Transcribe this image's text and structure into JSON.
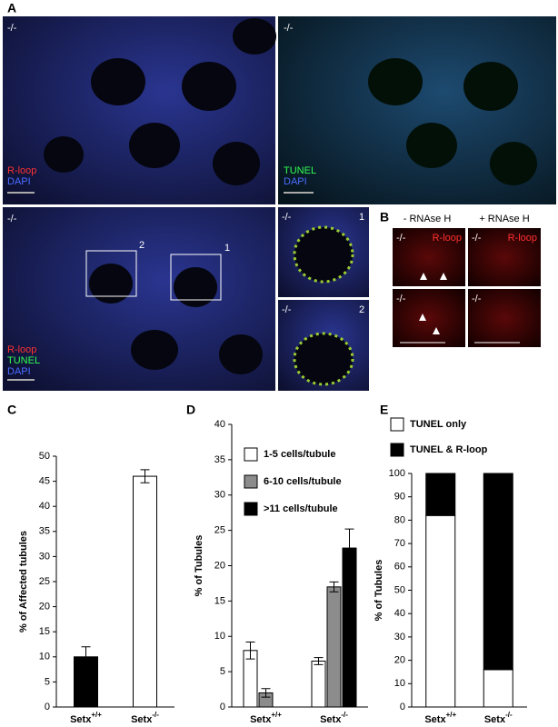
{
  "panel_a": {
    "label": "A",
    "top_left": {
      "genotype": "-/-",
      "stains": [
        "R-loop",
        "DAPI"
      ]
    },
    "top_right": {
      "genotype": "-/-",
      "stains": [
        "TUNEL",
        "DAPI"
      ]
    },
    "merge": {
      "genotype": "-/-",
      "stains": [
        "R-loop",
        "TUNEL",
        "DAPI"
      ],
      "boxes": [
        "2",
        "1"
      ]
    },
    "insets": [
      {
        "genotype": "-/-",
        "number": "1"
      },
      {
        "genotype": "-/-",
        "number": "2"
      }
    ]
  },
  "panel_b": {
    "label": "B",
    "columns": [
      "- RNAse H",
      "+ RNAse H"
    ],
    "cells": [
      {
        "genotype": "-/-",
        "stain": "R-loop"
      },
      {
        "genotype": "-/-",
        "stain": "R-loop"
      },
      {
        "genotype": "-/-"
      },
      {
        "genotype": "-/-"
      }
    ]
  },
  "chart_data": [
    {
      "type": "bar",
      "panel": "C",
      "ylabel": "% of Affected tubules",
      "categories": [
        "Setx+/+",
        "Setx-/-"
      ],
      "values": [
        10,
        46
      ],
      "errors": [
        2,
        1.3
      ],
      "colors": [
        "#000000",
        "#ffffff"
      ],
      "ylim": [
        0,
        50
      ],
      "yticks": [
        0,
        5,
        10,
        15,
        20,
        25,
        30,
        35,
        40,
        45,
        50
      ]
    },
    {
      "type": "grouped_bar",
      "panel": "D",
      "ylabel": "% of Tubules",
      "categories": [
        "Setx+/+",
        "Setx-/-"
      ],
      "series": [
        {
          "name": "1-5 cells/tubule",
          "color": "#ffffff",
          "values": [
            8,
            6.5
          ],
          "errors": [
            1.2,
            0.5
          ]
        },
        {
          "name": "6-10 cells/tubule",
          "color": "#8c8c8c",
          "values": [
            2,
            17
          ],
          "errors": [
            0.6,
            0.7
          ]
        },
        {
          "name": ">11 cells/tubule",
          "color": "#000000",
          "values": [
            0,
            22.5
          ],
          "errors": [
            null,
            2.7
          ]
        }
      ],
      "ylim": [
        0,
        40
      ],
      "yticks": [
        0,
        5,
        10,
        15,
        20,
        25,
        30,
        35,
        40
      ]
    },
    {
      "type": "stacked_bar",
      "panel": "E",
      "ylabel": "% of Tubules",
      "categories": [
        "Setx+/+",
        "Setx-/-"
      ],
      "series": [
        {
          "name": "TUNEL only",
          "color": "#ffffff",
          "values": [
            82,
            16
          ]
        },
        {
          "name": "TUNEL & R-loop",
          "color": "#000000",
          "values": [
            18,
            84
          ]
        }
      ],
      "ylim": [
        0,
        100
      ],
      "yticks": [
        0,
        10,
        20,
        30,
        40,
        50,
        60,
        70,
        80,
        90,
        100
      ]
    }
  ]
}
